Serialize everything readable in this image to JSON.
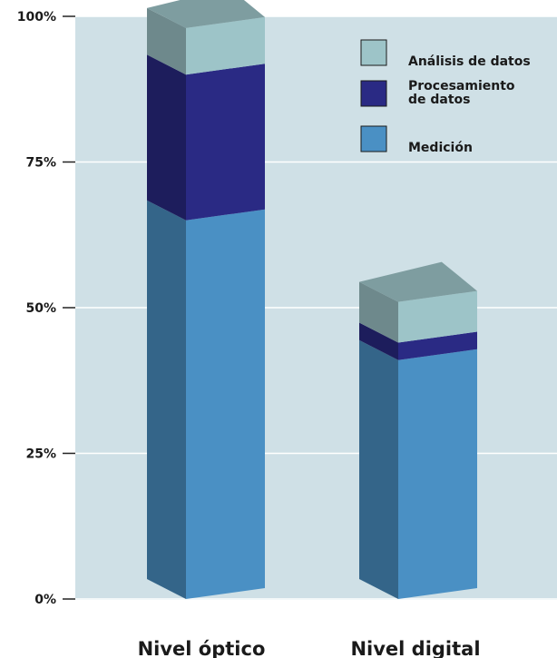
{
  "chart_data": {
    "type": "bar",
    "stacked": true,
    "style": "3d",
    "categories": [
      "Nivel óptico",
      "Nivel digital"
    ],
    "series": [
      {
        "name": "Medición",
        "values": [
          65,
          41
        ],
        "color": "#4a90c4"
      },
      {
        "name": "Procesamiento de datos",
        "values": [
          25,
          3
        ],
        "color": "#2a2a84"
      },
      {
        "name": "Análisis de datos",
        "values": [
          8,
          7
        ],
        "color": "#9dc4c8"
      }
    ],
    "legend": {
      "position": "top-right",
      "items": [
        {
          "lines": [
            "Análisis de datos"
          ],
          "color": "#9dc4c8"
        },
        {
          "lines": [
            "Procesamiento",
            "de datos"
          ],
          "color": "#2a2a84"
        },
        {
          "lines": [
            "Medición"
          ],
          "color": "#4a90c4"
        }
      ]
    },
    "y_ticks": [
      "0%",
      "25%",
      "50%",
      "75%",
      "100%"
    ],
    "ylim": [
      0,
      100
    ],
    "grid": true,
    "background_color": "#cfe0e6",
    "title": "",
    "xlabel": "",
    "ylabel": ""
  }
}
